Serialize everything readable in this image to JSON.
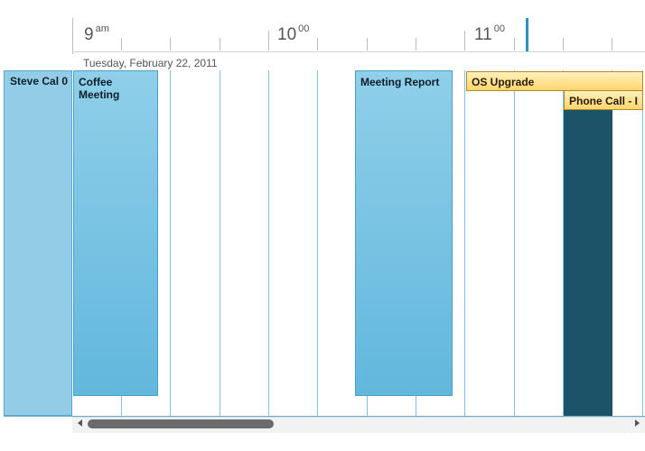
{
  "timeline": {
    "hours": [
      {
        "hour": "9",
        "suffix": "am"
      },
      {
        "hour": "10",
        "suffix": "00"
      },
      {
        "hour": "11",
        "suffix": "00"
      }
    ],
    "date": "Tuesday, February 22, 2011"
  },
  "resource": {
    "name": "Steve Cal 0"
  },
  "appointments": [
    {
      "title": "Coffee Meeting",
      "style": "blue"
    },
    {
      "title": "Meeting Report",
      "style": "blue"
    },
    {
      "title": "OS Upgrade",
      "style": "gold"
    },
    {
      "title": "Phone Call - I",
      "style": "gold"
    },
    {
      "title": "",
      "style": "dark"
    }
  ],
  "colors": {
    "appointment_blue": "#7cc4e3",
    "appointment_gold": "#ffe08a",
    "appointment_dark": "#1d5369",
    "now_marker": "#2f8fc0",
    "grid_line": "#7ec3dd"
  },
  "icons": [
    "scroll-left-arrow-icon",
    "scroll-right-arrow-icon"
  ]
}
